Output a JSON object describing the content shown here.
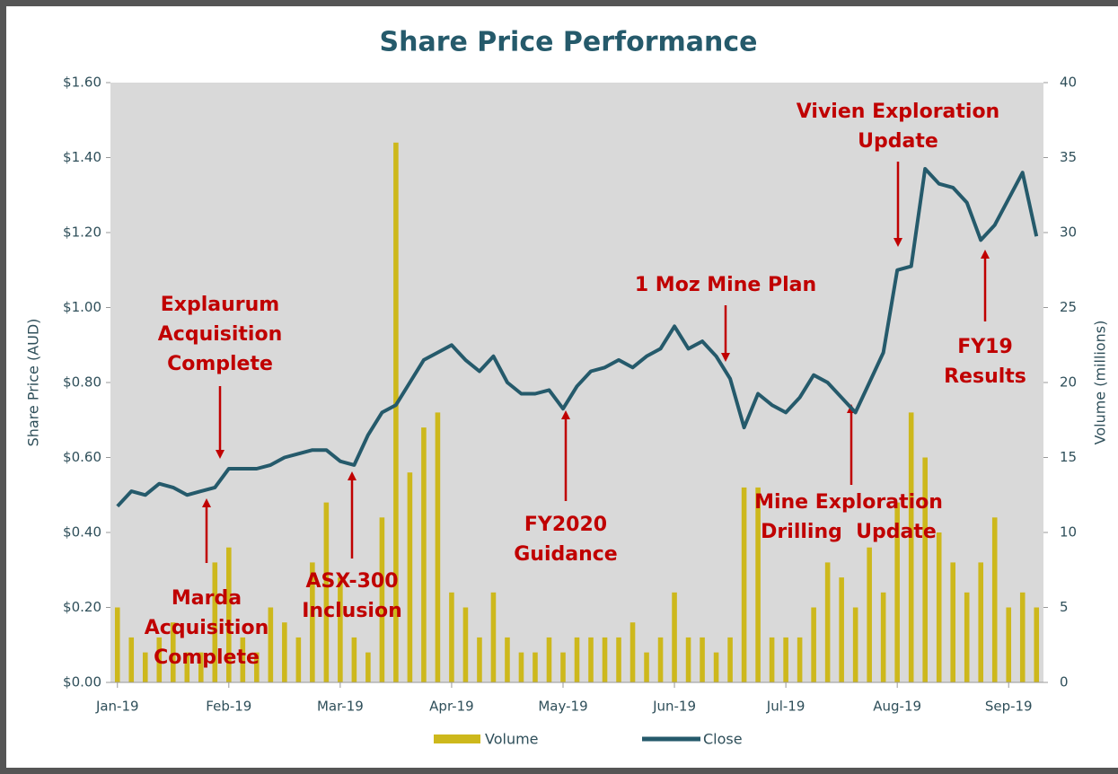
{
  "chart_data": {
    "type": "combo",
    "title": "Share Price Performance",
    "y_label": "Share Price (AUD)",
    "y2_label": "Volume (millions)",
    "categories": [
      "Jan-19",
      null,
      null,
      null,
      null,
      null,
      null,
      null,
      "Feb-19",
      null,
      null,
      null,
      null,
      null,
      null,
      null,
      "Mar-19",
      null,
      null,
      null,
      null,
      null,
      null,
      null,
      "Apr-19",
      null,
      null,
      null,
      null,
      null,
      null,
      null,
      "May-19",
      null,
      null,
      null,
      null,
      null,
      null,
      null,
      "Jun-19",
      null,
      null,
      null,
      null,
      null,
      null,
      null,
      "Jul-19",
      null,
      null,
      null,
      null,
      null,
      null,
      null,
      "Aug-19",
      null,
      null,
      null,
      null,
      null,
      null,
      null,
      "Sep-19",
      null,
      null
    ],
    "series": [
      {
        "name": "Volume",
        "type": "bar",
        "axis": "y2",
        "color": "#cdb81c",
        "values": [
          5,
          3,
          2,
          3,
          4,
          2,
          2,
          8,
          9,
          3,
          2,
          5,
          4,
          3,
          8,
          12,
          7,
          3,
          2,
          11,
          36,
          14,
          17,
          18,
          6,
          5,
          3,
          6,
          3,
          2,
          2,
          3,
          2,
          3,
          3,
          3,
          3,
          4,
          2,
          3,
          6,
          3,
          3,
          2,
          3,
          13,
          13,
          3,
          3,
          3,
          5,
          8,
          7,
          5,
          9,
          6,
          12,
          18,
          15,
          10,
          8,
          6,
          8,
          11,
          5,
          6,
          5
        ]
      },
      {
        "name": "Close",
        "type": "line",
        "axis": "y",
        "color": "#255a6b",
        "values": [
          0.47,
          0.51,
          0.5,
          0.53,
          0.52,
          0.5,
          0.51,
          0.52,
          0.57,
          0.57,
          0.57,
          0.58,
          0.6,
          0.61,
          0.62,
          0.62,
          0.59,
          0.58,
          0.66,
          0.72,
          0.74,
          0.8,
          0.86,
          0.88,
          0.9,
          0.86,
          0.83,
          0.87,
          0.8,
          0.77,
          0.77,
          0.78,
          0.73,
          0.79,
          0.83,
          0.84,
          0.86,
          0.84,
          0.87,
          0.89,
          0.95,
          0.89,
          0.91,
          0.87,
          0.81,
          0.68,
          0.77,
          0.74,
          0.72,
          0.76,
          0.82,
          0.8,
          0.76,
          0.72,
          0.8,
          0.88,
          1.1,
          1.11,
          1.37,
          1.33,
          1.32,
          1.28,
          1.18,
          1.22,
          1.29,
          1.36,
          1.19
        ]
      }
    ],
    "ylim": [
      0,
      1.6
    ],
    "yticks": [
      {
        "value": 0,
        "label": "$0.00"
      },
      {
        "value": 0.2,
        "label": "$0.20"
      },
      {
        "value": 0.4,
        "label": "$0.40"
      },
      {
        "value": 0.6,
        "label": "$0.60"
      },
      {
        "value": 0.8,
        "label": "$0.80"
      },
      {
        "value": 1.0,
        "label": "$1.00"
      },
      {
        "value": 1.2,
        "label": "$1.20"
      },
      {
        "value": 1.4,
        "label": "$1.40"
      },
      {
        "value": 1.6,
        "label": "$1.60"
      }
    ],
    "y2lim": [
      0,
      40
    ],
    "y2ticks": [
      0,
      5,
      10,
      15,
      20,
      25,
      30,
      35,
      40
    ],
    "legend": "bottom",
    "annotations": [
      [
        "Explaurum",
        "Acquisition",
        "Complete"
      ],
      [
        "Marda",
        "Acquisition",
        "Complete"
      ],
      [
        "ASX-300",
        "Inclusion"
      ],
      [
        "FY2020",
        "Guidance"
      ],
      [
        "1 Moz Mine Plan"
      ],
      [
        "Vivien Exploration",
        "Update"
      ],
      [
        "Mine Exploration",
        "Drilling  Update"
      ],
      [
        "FY19",
        "Results"
      ]
    ]
  }
}
